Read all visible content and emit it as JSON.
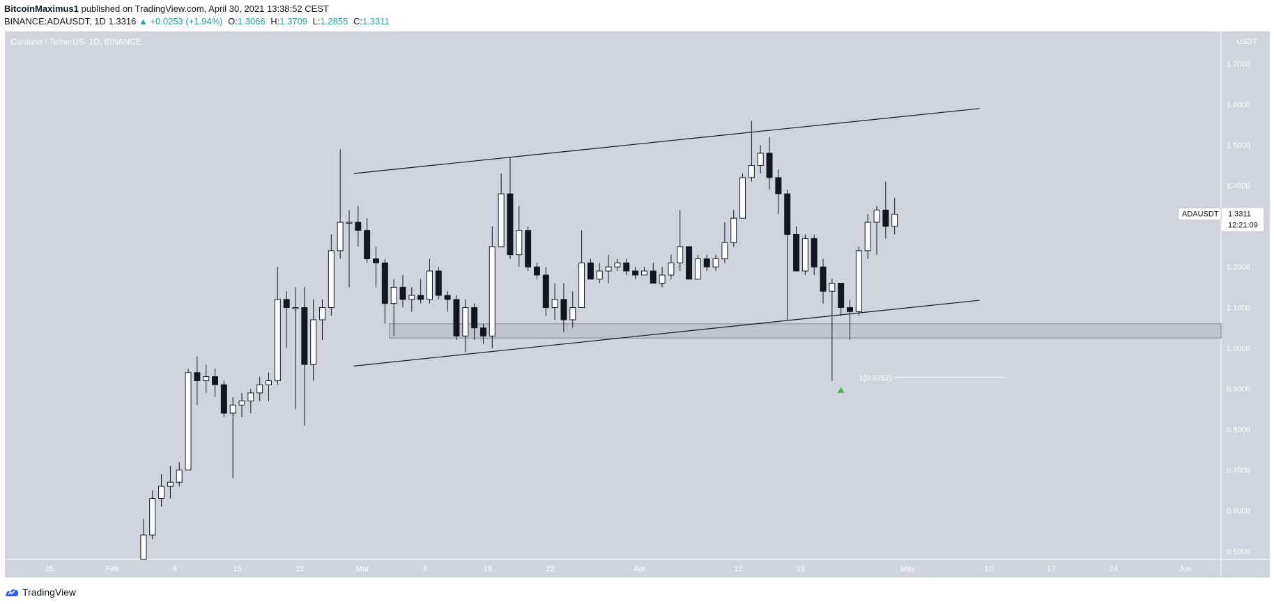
{
  "header": {
    "author": "BitcoinMaximus1",
    "published_text": "published on TradingView.com, April 30, 2021 13:38:52 CEST",
    "symbol": "BINANCE:ADAUSDT, 1D",
    "last": "1.3316",
    "change_arrow": "▲",
    "change": "+0.0253 (+1.94%)",
    "o_label": "O:",
    "o": "1.3066",
    "h_label": "H:",
    "h": "1.3709",
    "l_label": "L:",
    "l": "1.2855",
    "c_label": "C:",
    "c": "1.3311",
    "accent_color": "#26a69a"
  },
  "footer": {
    "brand": "TradingView",
    "logo_icon": "tradingview-logo-icon"
  },
  "chart_data": {
    "type": "candlestick",
    "title": "Cardano / TetherUS, 1D, BINANCE",
    "currency_label": "USDT",
    "ylim": [
      0.48,
      1.78
    ],
    "y_ticks": [
      "1.7000",
      "1.6000",
      "1.5000",
      "1.4000",
      "1.3000",
      "1.2000",
      "1.1000",
      "1.0000",
      "0.9000",
      "0.8000",
      "0.7000",
      "0.6000",
      "0.5000"
    ],
    "y_tick_values": [
      1.7,
      1.6,
      1.5,
      1.4,
      1.3,
      1.2,
      1.1,
      1.0,
      0.9,
      0.8,
      0.7,
      0.6,
      0.5
    ],
    "x_start_date": "2021-01-20",
    "x_end_date": "2021-06-05",
    "x_ticks": [
      {
        "label": "25",
        "date": "2021-01-25"
      },
      {
        "label": "Feb",
        "date": "2021-02-01"
      },
      {
        "label": "8",
        "date": "2021-02-08"
      },
      {
        "label": "15",
        "date": "2021-02-15"
      },
      {
        "label": "22",
        "date": "2021-02-22"
      },
      {
        "label": "Mar",
        "date": "2021-03-01"
      },
      {
        "label": "8",
        "date": "2021-03-08"
      },
      {
        "label": "15",
        "date": "2021-03-15"
      },
      {
        "label": "22",
        "date": "2021-03-22"
      },
      {
        "label": "Apr",
        "date": "2021-04-01"
      },
      {
        "label": "12",
        "date": "2021-04-12"
      },
      {
        "label": "19",
        "date": "2021-04-19"
      },
      {
        "label": "May",
        "date": "2021-05-01"
      },
      {
        "label": "10",
        "date": "2021-05-10"
      },
      {
        "label": "17",
        "date": "2021-05-17"
      },
      {
        "label": "24",
        "date": "2021-05-24"
      },
      {
        "label": "Jun",
        "date": "2021-06-01"
      }
    ],
    "candles_start_date": "2021-02-04",
    "candles": [
      [
        0.46,
        0.54,
        0.44,
        0.58
      ],
      [
        0.54,
        0.63,
        0.53,
        0.65
      ],
      [
        0.63,
        0.66,
        0.61,
        0.69
      ],
      [
        0.66,
        0.67,
        0.63,
        0.71
      ],
      [
        0.67,
        0.7,
        0.66,
        0.72
      ],
      [
        0.7,
        0.94,
        0.7,
        0.95
      ],
      [
        0.94,
        0.92,
        0.86,
        0.98
      ],
      [
        0.92,
        0.93,
        0.89,
        0.96
      ],
      [
        0.93,
        0.91,
        0.88,
        0.95
      ],
      [
        0.91,
        0.84,
        0.83,
        0.92
      ],
      [
        0.84,
        0.86,
        0.68,
        0.88
      ],
      [
        0.86,
        0.87,
        0.83,
        0.89
      ],
      [
        0.87,
        0.89,
        0.84,
        0.9
      ],
      [
        0.89,
        0.91,
        0.87,
        0.93
      ],
      [
        0.91,
        0.92,
        0.87,
        0.94
      ],
      [
        0.92,
        1.12,
        0.91,
        1.2
      ],
      [
        1.12,
        1.1,
        1.0,
        1.14
      ],
      [
        1.1,
        1.1,
        0.85,
        1.15
      ],
      [
        1.1,
        0.96,
        0.81,
        1.15
      ],
      [
        0.96,
        1.07,
        0.92,
        1.12
      ],
      [
        1.07,
        1.1,
        1.02,
        1.12
      ],
      [
        1.1,
        1.24,
        1.08,
        1.28
      ],
      [
        1.24,
        1.31,
        1.22,
        1.49
      ],
      [
        1.31,
        1.31,
        1.15,
        1.34
      ],
      [
        1.31,
        1.29,
        1.25,
        1.35
      ],
      [
        1.29,
        1.22,
        1.21,
        1.32
      ],
      [
        1.22,
        1.21,
        1.15,
        1.25
      ],
      [
        1.21,
        1.11,
        1.06,
        1.22
      ],
      [
        1.11,
        1.15,
        1.03,
        1.17
      ],
      [
        1.15,
        1.12,
        1.1,
        1.18
      ],
      [
        1.12,
        1.13,
        1.09,
        1.15
      ],
      [
        1.13,
        1.12,
        1.11,
        1.17
      ],
      [
        1.12,
        1.19,
        1.11,
        1.22
      ],
      [
        1.19,
        1.13,
        1.12,
        1.2
      ],
      [
        1.13,
        1.12,
        1.09,
        1.14
      ],
      [
        1.12,
        1.03,
        1.02,
        1.13
      ],
      [
        1.03,
        1.1,
        0.99,
        1.12
      ],
      [
        1.1,
        1.05,
        1.02,
        1.11
      ],
      [
        1.05,
        1.03,
        1.01,
        1.06
      ],
      [
        1.03,
        1.25,
        1.0,
        1.3
      ],
      [
        1.25,
        1.38,
        1.25,
        1.43
      ],
      [
        1.38,
        1.23,
        1.22,
        1.47
      ],
      [
        1.23,
        1.29,
        1.2,
        1.35
      ],
      [
        1.29,
        1.2,
        1.19,
        1.3
      ],
      [
        1.2,
        1.18,
        1.17,
        1.21
      ],
      [
        1.18,
        1.1,
        1.08,
        1.2
      ],
      [
        1.1,
        1.12,
        1.07,
        1.16
      ],
      [
        1.12,
        1.07,
        1.04,
        1.16
      ],
      [
        1.07,
        1.1,
        1.05,
        1.14
      ],
      [
        1.1,
        1.21,
        1.1,
        1.29
      ],
      [
        1.21,
        1.17,
        1.17,
        1.22
      ],
      [
        1.17,
        1.19,
        1.16,
        1.21
      ],
      [
        1.19,
        1.2,
        1.16,
        1.23
      ],
      [
        1.2,
        1.21,
        1.19,
        1.22
      ],
      [
        1.21,
        1.19,
        1.18,
        1.22
      ],
      [
        1.19,
        1.18,
        1.17,
        1.2
      ],
      [
        1.18,
        1.19,
        1.18,
        1.2
      ],
      [
        1.19,
        1.16,
        1.16,
        1.21
      ],
      [
        1.16,
        1.18,
        1.15,
        1.2
      ],
      [
        1.18,
        1.21,
        1.17,
        1.23
      ],
      [
        1.21,
        1.25,
        1.19,
        1.34
      ],
      [
        1.25,
        1.17,
        1.17,
        1.25
      ],
      [
        1.17,
        1.22,
        1.17,
        1.23
      ],
      [
        1.22,
        1.2,
        1.19,
        1.23
      ],
      [
        1.2,
        1.22,
        1.19,
        1.23
      ],
      [
        1.22,
        1.26,
        1.21,
        1.31
      ],
      [
        1.26,
        1.32,
        1.25,
        1.34
      ],
      [
        1.32,
        1.42,
        1.32,
        1.43
      ],
      [
        1.42,
        1.45,
        1.41,
        1.56
      ],
      [
        1.45,
        1.48,
        1.43,
        1.5
      ],
      [
        1.48,
        1.42,
        1.39,
        1.52
      ],
      [
        1.42,
        1.38,
        1.33,
        1.44
      ],
      [
        1.38,
        1.28,
        1.07,
        1.39
      ],
      [
        1.28,
        1.19,
        1.19,
        1.3
      ],
      [
        1.19,
        1.27,
        1.18,
        1.28
      ],
      [
        1.27,
        1.2,
        1.18,
        1.28
      ],
      [
        1.2,
        1.14,
        1.11,
        1.22
      ],
      [
        1.14,
        1.16,
        0.92,
        1.17
      ],
      [
        1.16,
        1.1,
        1.08,
        1.16
      ],
      [
        1.1,
        1.09,
        1.02,
        1.12
      ],
      [
        1.09,
        1.24,
        1.08,
        1.25
      ],
      [
        1.24,
        1.31,
        1.22,
        1.33
      ],
      [
        1.31,
        1.34,
        1.23,
        1.35
      ],
      [
        1.34,
        1.3,
        1.27,
        1.41
      ],
      [
        1.3,
        1.33,
        1.28,
        1.37
      ]
    ],
    "trendlines": [
      {
        "name": "channel-top",
        "from": {
          "date": "2021-02-28",
          "value": 1.43
        },
        "to": {
          "date": "2021-05-09",
          "value": 1.59
        }
      },
      {
        "name": "channel-bottom",
        "from": {
          "date": "2021-02-28",
          "value": 0.956
        },
        "to": {
          "date": "2021-05-09",
          "value": 1.118
        }
      }
    ],
    "zone": {
      "from_date": "2021-03-04",
      "to_date": "2021-06-05",
      "low": 1.025,
      "high": 1.06
    },
    "fib": {
      "label": "1(0.9262)",
      "value": 0.928,
      "from_date": "2021-04-22",
      "to_date": "2021-05-12"
    },
    "marker": {
      "date": "2021-04-23",
      "value": 0.897,
      "color": "#4caf50",
      "icon": "arrow-up-icon"
    },
    "price_label": {
      "symbol": "ADAUSDT",
      "price": "1.3311",
      "countdown": "12:21:09",
      "value": 1.3311
    },
    "colors": {
      "bg": "#d1d4dc",
      "up_fill": "#ffffff",
      "down_fill": "#131722",
      "stroke": "#131722",
      "axis_text": "#ffffff",
      "zone_fill": "#c2c4cd",
      "zone_border": "#868993"
    }
  }
}
